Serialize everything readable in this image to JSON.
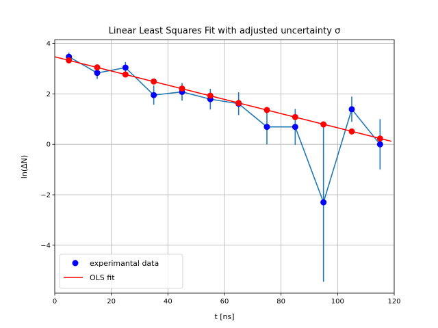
{
  "chart_data": {
    "type": "scatter",
    "title": "Linear Least Squares Fit with adjusted uncertainty σ",
    "xlabel": "t [ns]",
    "ylabel": "ln(ΔN)",
    "xlim": [
      0,
      120
    ],
    "ylim": [
      -5.9,
      4.15
    ],
    "xticks": [
      0,
      20,
      40,
      60,
      80,
      100,
      120
    ],
    "yticks": [
      -4,
      -2,
      0,
      2,
      4
    ],
    "grid": true,
    "legend_position": "lower-left",
    "x": [
      5,
      15,
      25,
      35,
      45,
      55,
      65,
      75,
      85,
      95,
      105,
      115
    ],
    "series": [
      {
        "name": "experimantal data",
        "kind": "points-errorbars",
        "marker_color": "#0000ff",
        "line_color": "#1f77b4",
        "values": [
          3.47,
          2.83,
          3.04,
          1.95,
          2.08,
          1.79,
          1.61,
          0.69,
          0.69,
          -2.3,
          1.39,
          0.0
        ],
        "errors": [
          0.17,
          0.24,
          0.22,
          0.38,
          0.35,
          0.41,
          0.45,
          0.69,
          0.71,
          3.15,
          0.5,
          1.0
        ]
      },
      {
        "name": "OLS fit",
        "kind": "line",
        "line_color": "#ff0000",
        "fit_points": [
          3.33,
          3.05,
          2.77,
          2.49,
          2.21,
          1.93,
          1.64,
          1.36,
          1.08,
          0.79,
          0.51,
          0.23
        ],
        "line_x": [
          0,
          119
        ],
        "line_y": [
          3.47,
          0.12
        ]
      }
    ]
  }
}
